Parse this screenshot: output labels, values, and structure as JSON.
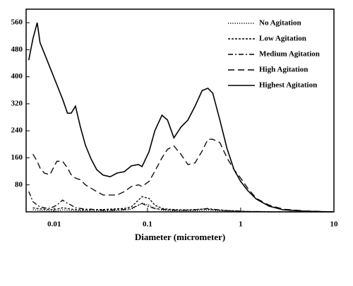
{
  "chart_data": {
    "type": "line",
    "xlabel": "Diameter (micrometer)",
    "xscale": "log",
    "xlim": [
      0.005,
      10
    ],
    "xticks": [
      0.01,
      0.1,
      1,
      10
    ],
    "ylim": [
      0,
      600
    ],
    "yticks": [
      80,
      160,
      240,
      320,
      400,
      480,
      560
    ],
    "legend": "upper right",
    "x": [
      0.00533,
      0.00591,
      0.00657,
      0.00705,
      0.00783,
      0.009,
      0.0107,
      0.0123,
      0.0139,
      0.0152,
      0.0169,
      0.0191,
      0.0216,
      0.0248,
      0.0286,
      0.0334,
      0.0398,
      0.0474,
      0.0565,
      0.0673,
      0.0802,
      0.0875,
      0.104,
      0.12,
      0.143,
      0.164,
      0.192,
      0.229,
      0.272,
      0.324,
      0.386,
      0.445,
      0.502,
      0.598,
      0.713,
      0.849,
      1.0,
      1.19,
      1.47,
      2.01,
      2.86,
      4.83,
      9.7
    ],
    "series": [
      {
        "name": "No Agitation",
        "style": "dotted",
        "color": "#000000",
        "values": [
          null,
          6,
          5,
          4,
          4,
          3,
          3,
          6,
          5,
          4,
          3,
          3,
          3,
          3,
          3,
          3,
          3,
          4,
          5,
          8,
          20,
          25,
          20,
          10,
          5,
          4,
          3,
          3,
          3,
          3,
          4,
          5,
          4,
          3,
          2,
          2,
          1,
          1,
          1,
          0,
          0,
          0,
          0
        ]
      },
      {
        "name": "Low Agitation",
        "style": "dashed-fine",
        "color": "#000000",
        "values": [
          null,
          12,
          10,
          9,
          8,
          7,
          8,
          12,
          10,
          8,
          7,
          6,
          6,
          6,
          7,
          7,
          8,
          9,
          10,
          15,
          35,
          45,
          40,
          20,
          10,
          8,
          7,
          6,
          6,
          7,
          8,
          8,
          7,
          5,
          4,
          3,
          2,
          1,
          1,
          0,
          0,
          0,
          0
        ]
      },
      {
        "name": "Medium Agitation",
        "style": "dash-dot",
        "color": "#000000",
        "values": [
          60,
          30,
          20,
          15,
          12,
          10,
          20,
          35,
          25,
          20,
          12,
          10,
          8,
          8,
          6,
          5,
          5,
          6,
          7,
          10,
          20,
          25,
          15,
          10,
          8,
          6,
          5,
          5,
          5,
          6,
          8,
          10,
          8,
          6,
          4,
          3,
          2,
          1,
          1,
          0,
          0,
          0,
          0
        ]
      },
      {
        "name": "High Agitation",
        "style": "dashed",
        "color": "#000000",
        "values": [
          null,
          171,
          150,
          130,
          115,
          110,
          150,
          150,
          130,
          110,
          100,
          95,
          80,
          70,
          60,
          50,
          50,
          50,
          60,
          75,
          80,
          75,
          90,
          120,
          160,
          185,
          195,
          170,
          140,
          145,
          180,
          215,
          215,
          205,
          160,
          125,
          100,
          70,
          40,
          20,
          8,
          3,
          0
        ]
      },
      {
        "name": "Highest Agitation",
        "style": "solid",
        "color": "#000000",
        "values": [
          449,
          512,
          560,
          501,
          470,
          428,
          376,
          334,
          292,
          292,
          313,
          251,
          198,
          157,
          125,
          109,
          104,
          115,
          119,
          136,
          140,
          134,
          178,
          240,
          286,
          272,
          219,
          251,
          272,
          313,
          359,
          366,
          351,
          272,
          188,
          125,
          90,
          63,
          38,
          17,
          6,
          2,
          0
        ]
      }
    ]
  }
}
